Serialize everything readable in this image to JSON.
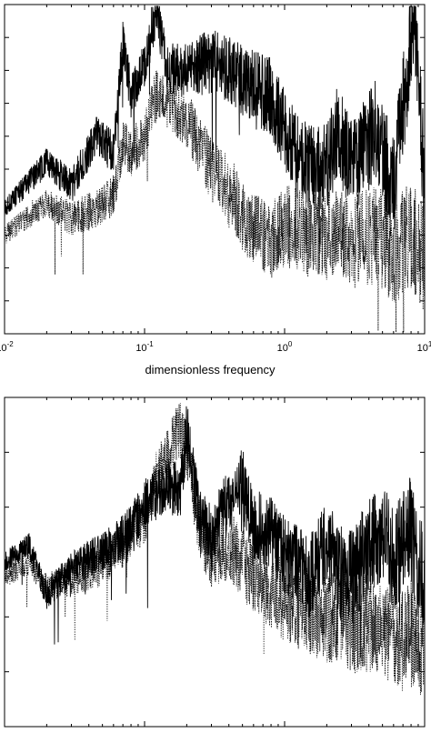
{
  "chart_data": [
    {
      "type": "line",
      "xscale": "log",
      "xlim": [
        0.01,
        10
      ],
      "xlabel": "dimensionless frequency",
      "x_tick_labels": [
        {
          "base": "10",
          "exp": "-2",
          "value": 0.01
        },
        {
          "base": "10",
          "exp": "-1",
          "value": 0.1
        },
        {
          "base": "10",
          "exp": "0",
          "value": 1
        },
        {
          "base": "10",
          "exp": "1",
          "value": 10
        }
      ],
      "grid": false,
      "series": [
        {
          "style": "solid",
          "color": "#000000",
          "x": [
            0.01,
            0.02,
            0.03,
            0.045,
            0.06,
            0.07,
            0.08,
            0.1,
            0.12,
            0.15,
            0.2,
            0.3,
            0.4,
            0.6,
            0.8,
            1.0,
            1.3,
            2.0,
            2.4,
            3.0,
            4.5,
            6.0,
            8.5,
            10.0
          ],
          "y": [
            0.38,
            0.52,
            0.45,
            0.6,
            0.55,
            0.88,
            0.72,
            0.82,
            0.98,
            0.8,
            0.8,
            0.83,
            0.8,
            0.75,
            0.72,
            0.62,
            0.52,
            0.5,
            0.62,
            0.5,
            0.62,
            0.45,
            0.98,
            0.45
          ]
        },
        {
          "style": "dotted",
          "color": "#000000",
          "x": [
            0.01,
            0.02,
            0.03,
            0.045,
            0.06,
            0.07,
            0.08,
            0.1,
            0.12,
            0.15,
            0.2,
            0.3,
            0.4,
            0.5,
            0.6,
            0.8,
            1.0,
            1.5,
            2.0,
            3.0,
            4.5,
            6.0,
            8.0,
            10.0
          ],
          "y": [
            0.3,
            0.4,
            0.35,
            0.38,
            0.42,
            0.58,
            0.55,
            0.6,
            0.72,
            0.7,
            0.65,
            0.5,
            0.45,
            0.35,
            0.32,
            0.28,
            0.33,
            0.3,
            0.3,
            0.28,
            0.3,
            0.25,
            0.3,
            0.22
          ]
        }
      ]
    },
    {
      "type": "line",
      "xscale": "log",
      "xlim": [
        0.01,
        10
      ],
      "grid": false,
      "series": [
        {
          "style": "solid",
          "color": "#000000",
          "x": [
            0.01,
            0.015,
            0.02,
            0.03,
            0.045,
            0.06,
            0.08,
            0.1,
            0.12,
            0.15,
            0.18,
            0.2,
            0.25,
            0.3,
            0.4,
            0.5,
            0.6,
            0.8,
            1.0,
            1.5,
            2.0,
            2.5,
            3.0,
            4.0,
            5.0,
            6.0,
            7.0,
            8.0,
            9.0,
            10.0
          ],
          "y": [
            0.5,
            0.55,
            0.4,
            0.48,
            0.52,
            0.55,
            0.6,
            0.68,
            0.7,
            0.74,
            0.72,
            0.9,
            0.62,
            0.58,
            0.68,
            0.74,
            0.62,
            0.58,
            0.52,
            0.45,
            0.55,
            0.48,
            0.45,
            0.55,
            0.6,
            0.5,
            0.55,
            0.6,
            0.45,
            0.48
          ]
        },
        {
          "style": "dotted",
          "color": "#000000",
          "x": [
            0.01,
            0.015,
            0.02,
            0.03,
            0.045,
            0.06,
            0.08,
            0.1,
            0.12,
            0.15,
            0.18,
            0.2,
            0.25,
            0.3,
            0.4,
            0.5,
            0.6,
            0.8,
            1.0,
            1.5,
            2.0,
            2.5,
            3.0,
            4.0,
            5.0,
            6.0,
            7.0,
            8.0,
            9.0,
            10.0
          ],
          "y": [
            0.45,
            0.5,
            0.42,
            0.45,
            0.48,
            0.52,
            0.58,
            0.62,
            0.75,
            0.85,
            0.9,
            0.85,
            0.58,
            0.52,
            0.55,
            0.5,
            0.45,
            0.42,
            0.38,
            0.35,
            0.32,
            0.35,
            0.3,
            0.32,
            0.28,
            0.3,
            0.25,
            0.28,
            0.26,
            0.25
          ]
        }
      ]
    }
  ]
}
